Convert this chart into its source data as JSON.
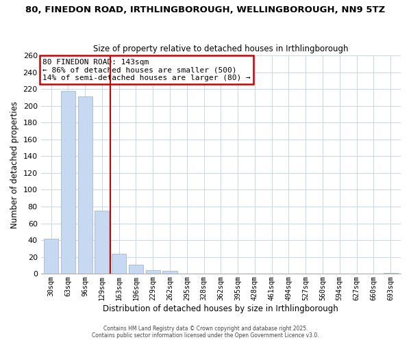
{
  "title": "80, FINEDON ROAD, IRTHLINGBOROUGH, WELLINGBOROUGH, NN9 5TZ",
  "subtitle": "Size of property relative to detached houses in Irthlingborough",
  "xlabel": "Distribution of detached houses by size in Irthlingborough",
  "ylabel": "Number of detached properties",
  "bar_labels": [
    "30sqm",
    "63sqm",
    "96sqm",
    "129sqm",
    "163sqm",
    "196sqm",
    "229sqm",
    "262sqm",
    "295sqm",
    "328sqm",
    "362sqm",
    "395sqm",
    "428sqm",
    "461sqm",
    "494sqm",
    "527sqm",
    "560sqm",
    "594sqm",
    "627sqm",
    "660sqm",
    "693sqm"
  ],
  "bar_values": [
    42,
    218,
    211,
    75,
    24,
    11,
    4,
    3,
    0,
    0,
    0,
    0,
    0,
    0,
    0,
    0,
    0,
    0,
    0,
    0,
    1
  ],
  "bar_color": "#c6d9f0",
  "bar_edge_color": "#a0b8d8",
  "vline_color": "#cc0000",
  "ylim": [
    0,
    260
  ],
  "yticks": [
    0,
    20,
    40,
    60,
    80,
    100,
    120,
    140,
    160,
    180,
    200,
    220,
    240,
    260
  ],
  "annotation_title": "80 FINEDON ROAD: 143sqm",
  "annotation_line1": "← 86% of detached houses are smaller (500)",
  "annotation_line2": "14% of semi-detached houses are larger (80) →",
  "footer1": "Contains HM Land Registry data © Crown copyright and database right 2025.",
  "footer2": "Contains public sector information licensed under the Open Government Licence v3.0.",
  "background_color": "#ffffff",
  "grid_color": "#c8d4e8"
}
